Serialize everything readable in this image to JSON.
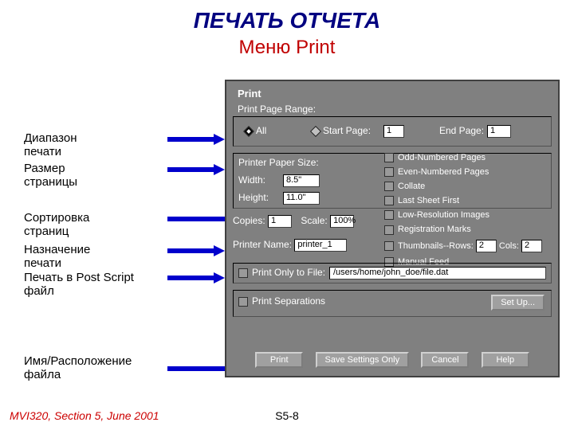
{
  "slide": {
    "title": "ПЕЧАТЬ ОТЧЕТА",
    "subtitle": "Меню Print"
  },
  "labels": {
    "range": "Диапазон печати",
    "paper": "Размер страницы",
    "sort": "Сортировка страниц",
    "dest": "Назначение печати",
    "ps": "Печать в Post Script файл",
    "file": "Имя/Расположение файла"
  },
  "dialog": {
    "title": "Print",
    "range_label": "Print Page Range:",
    "all": "All",
    "start_page": "Start Page:",
    "start_val": "1",
    "end_page": "End Page:",
    "end_val": "1",
    "paper_label": "Printer Paper Size:",
    "width_label": "Width:",
    "width_val": "8.5\"",
    "height_label": "Height:",
    "height_val": "11.0\"",
    "copies_label": "Copies:",
    "copies_val": "1",
    "scale_label": "Scale:",
    "scale_val": "100%",
    "printer_label": "Printer Name:",
    "printer_val": "printer_1",
    "checks": {
      "odd": "Odd-Numbered Pages",
      "even": "Even-Numbered Pages",
      "collate": "Collate",
      "last": "Last Sheet First",
      "lowres": "Low-Resolution Images",
      "regmarks": "Registration Marks",
      "thumbs": "Thumbnails--Rows:",
      "thumbs_rows": "2",
      "thumbs_cols_label": "Cols:",
      "thumbs_cols": "2",
      "manual": "Manual Feed"
    },
    "file_only": "Print Only to File:",
    "file_path": "/users/home/john_doe/file.dat",
    "separations": "Print Separations",
    "setup": "Set Up...",
    "btn_print": "Print",
    "btn_save": "Save Settings Only",
    "btn_cancel": "Cancel",
    "btn_help": "Help"
  },
  "footer": {
    "left": "MVI320, Section 5, June 2001",
    "center": "S5-8"
  },
  "colors": {
    "title": "#000080",
    "subtitle": "#c00000",
    "dialog_bg": "#808080",
    "arrow": "#0000cc",
    "footer": "#cc0000"
  }
}
